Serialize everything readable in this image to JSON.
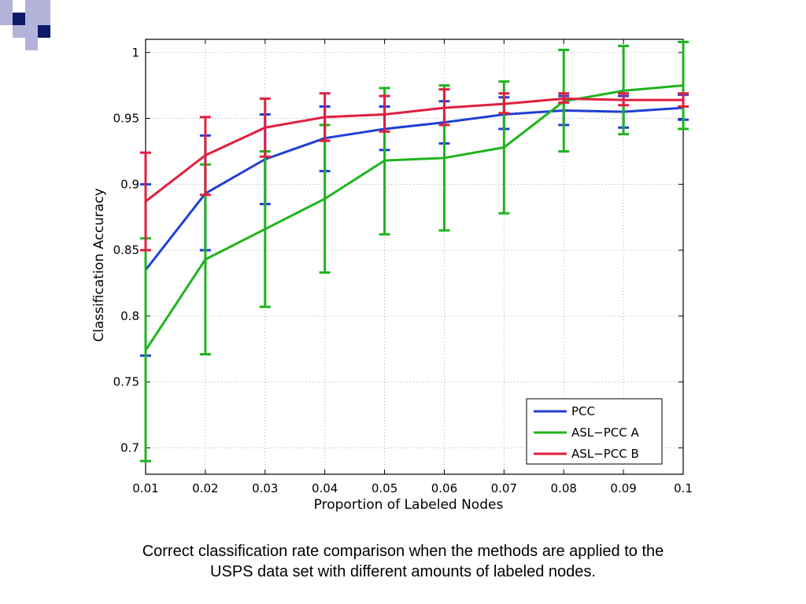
{
  "slide": {
    "caption_line1": "Correct classification rate comparison when the methods are applied to the",
    "caption_line2": "USPS data set with different amounts of labeled nodes."
  },
  "chart_data": {
    "type": "line",
    "title": "",
    "xlabel": "Proportion of Labeled Nodes",
    "ylabel": "Classification Accuracy",
    "x": [
      0.01,
      0.02,
      0.03,
      0.04,
      0.05,
      0.06,
      0.07,
      0.08,
      0.09,
      0.1
    ],
    "x_tick_labels": [
      "0.01",
      "0.02",
      "0.03",
      "0.04",
      "0.05",
      "0.06",
      "0.07",
      "0.08",
      "0.09",
      "0.1"
    ],
    "y_ticks": [
      0.7,
      0.75,
      0.8,
      0.85,
      0.9,
      0.95,
      1
    ],
    "y_tick_labels": [
      "0.7",
      "0.75",
      "0.8",
      "0.85",
      "0.9",
      "0.95",
      "1"
    ],
    "xlim": [
      0.01,
      0.1
    ],
    "ylim": [
      0.68,
      1.01
    ],
    "grid": true,
    "legend_position": "bottom-right",
    "series": [
      {
        "name": "PCC",
        "color": "#1f3fd6",
        "values": [
          0.835,
          0.893,
          0.919,
          0.935,
          0.942,
          0.947,
          0.953,
          0.956,
          0.955,
          0.958
        ],
        "err_low": [
          0.77,
          0.85,
          0.885,
          0.91,
          0.926,
          0.931,
          0.942,
          0.945,
          0.943,
          0.949
        ],
        "err_high": [
          0.9,
          0.937,
          0.953,
          0.959,
          0.959,
          0.963,
          0.966,
          0.967,
          0.967,
          0.968
        ]
      },
      {
        "name": "ASL−PCC A",
        "color": "#1fb41f",
        "values": [
          0.774,
          0.843,
          0.866,
          0.889,
          0.918,
          0.92,
          0.928,
          0.963,
          0.971,
          0.975
        ],
        "err_low": [
          0.69,
          0.771,
          0.807,
          0.833,
          0.862,
          0.865,
          0.878,
          0.925,
          0.938,
          0.942
        ],
        "err_high": [
          0.859,
          0.915,
          0.925,
          0.945,
          0.973,
          0.975,
          0.978,
          1.002,
          1.005,
          1.008
        ]
      },
      {
        "name": "ASL−PCC B",
        "color": "#e01f3f",
        "values": [
          0.887,
          0.922,
          0.943,
          0.951,
          0.953,
          0.958,
          0.961,
          0.965,
          0.964,
          0.964
        ],
        "err_low": [
          0.85,
          0.892,
          0.921,
          0.933,
          0.94,
          0.945,
          0.954,
          0.962,
          0.96,
          0.959
        ],
        "err_high": [
          0.924,
          0.951,
          0.965,
          0.969,
          0.967,
          0.972,
          0.969,
          0.969,
          0.969,
          0.969
        ]
      }
    ]
  }
}
